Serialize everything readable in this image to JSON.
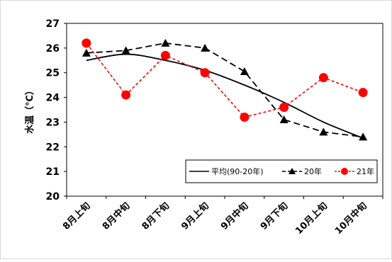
{
  "chart_data": {
    "type": "line",
    "title": "",
    "xlabel": "",
    "ylabel": "水温（℃）",
    "ylim": [
      20,
      27
    ],
    "yticks": [
      "20",
      "21",
      "22",
      "23",
      "24",
      "25",
      "26",
      "27"
    ],
    "grid": false,
    "legend_position": "lower-right",
    "categories": [
      "8月上旬",
      "8月中旬",
      "8月下旬",
      "9月上旬",
      "9月中旬",
      "9月下旬",
      "10月上旬",
      "10月中旬"
    ],
    "series": [
      {
        "name": "平均(90-20年)",
        "values": [
          25.5,
          25.75,
          25.5,
          25.1,
          24.5,
          23.8,
          23.0,
          22.35
        ],
        "color": "#000000",
        "style": "solid",
        "marker": "none"
      },
      {
        "name": "20年",
        "values": [
          25.8,
          25.9,
          26.2,
          26.0,
          25.05,
          23.1,
          22.6,
          22.4
        ],
        "color": "#000000",
        "style": "dashed",
        "marker": "triangle"
      },
      {
        "name": "21年",
        "values": [
          26.2,
          24.1,
          25.7,
          25.0,
          23.2,
          23.6,
          24.8,
          24.2
        ],
        "color": "#ff0000",
        "style": "dotted",
        "marker": "circle"
      }
    ]
  }
}
